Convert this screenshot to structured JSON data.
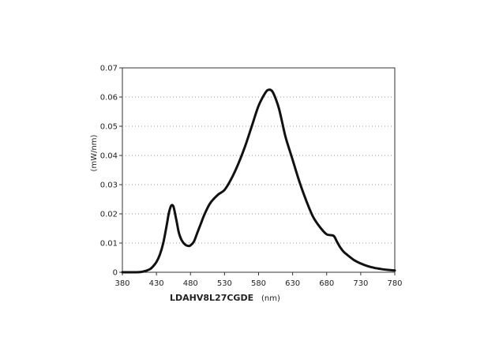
{
  "chart_data": {
    "type": "line",
    "title": "",
    "xlabel": "(nm)",
    "ylabel": "(mW/nm)",
    "caption": "LDAHV8L27CGDE",
    "xlim": [
      380,
      780
    ],
    "ylim": [
      0,
      0.07
    ],
    "x_ticks": [
      380,
      430,
      480,
      530,
      580,
      630,
      680,
      730,
      780
    ],
    "y_ticks": [
      0,
      0.01,
      0.02,
      0.03,
      0.04,
      0.05,
      0.06,
      0.07
    ],
    "x_tick_labels": [
      "380",
      "430",
      "480",
      "530",
      "580",
      "630",
      "680",
      "730",
      "780"
    ],
    "y_tick_labels": [
      "0",
      "0.01",
      "0.02",
      "0.03",
      "0.04",
      "0.05",
      "0.06",
      "0.07"
    ],
    "grid": "horizontal-dotted",
    "line_color": "#111111",
    "series": [
      {
        "x": [
          380,
          400,
          410,
          420,
          425,
          430,
          435,
          440,
          445,
          448,
          451,
          453,
          455,
          457,
          460,
          463,
          467,
          472,
          477,
          480,
          485,
          490,
          495,
          500,
          505,
          510,
          520,
          530,
          540,
          550,
          560,
          570,
          580,
          590,
          595,
          600,
          605,
          610,
          615,
          620,
          630,
          640,
          650,
          660,
          670,
          680,
          690,
          695,
          700,
          705,
          710,
          720,
          730,
          740,
          750,
          760,
          770,
          780
        ],
        "y": [
          0,
          0,
          0.0002,
          0.001,
          0.002,
          0.0035,
          0.006,
          0.01,
          0.016,
          0.02,
          0.0225,
          0.023,
          0.0225,
          0.0205,
          0.017,
          0.0135,
          0.011,
          0.0095,
          0.009,
          0.0092,
          0.0105,
          0.0135,
          0.0165,
          0.0195,
          0.022,
          0.024,
          0.0265,
          0.0282,
          0.032,
          0.037,
          0.043,
          0.05,
          0.057,
          0.0615,
          0.0625,
          0.062,
          0.0595,
          0.056,
          0.051,
          0.046,
          0.0385,
          0.031,
          0.0245,
          0.019,
          0.0155,
          0.013,
          0.0125,
          0.0105,
          0.0085,
          0.007,
          0.006,
          0.0042,
          0.003,
          0.0021,
          0.0015,
          0.0011,
          0.0008,
          0.0006
        ]
      }
    ]
  }
}
